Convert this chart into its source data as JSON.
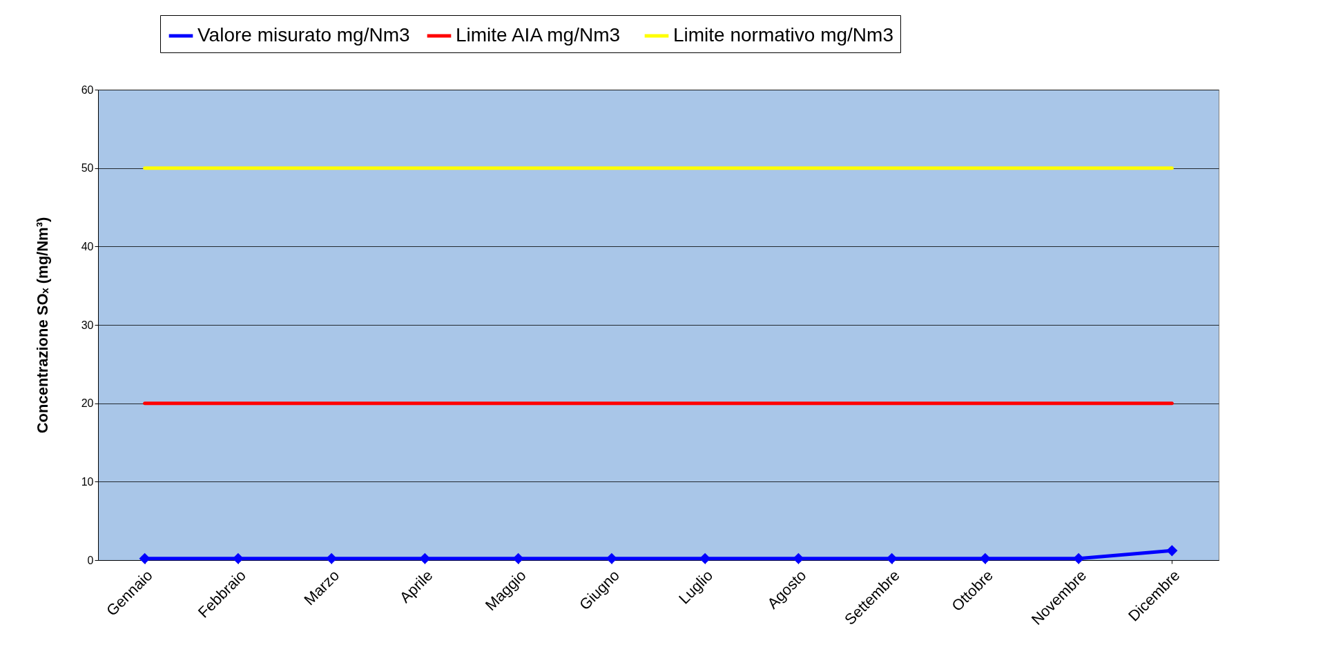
{
  "chart_data": {
    "type": "line",
    "ylabel": "Concentrazione SOₓ (mg/Nm³)",
    "categories": [
      "Gennaio",
      "Febbraio",
      "Marzo",
      "Aprile",
      "Maggio",
      "Giugno",
      "Luglio",
      "Agosto",
      "Settembre",
      "Ottobre",
      "Novembre",
      "Dicembre"
    ],
    "series": [
      {
        "name": "Valore misurato mg/Nm3",
        "color": "#0000ff",
        "marker": "diamond",
        "values": [
          0.2,
          0.2,
          0.2,
          0.2,
          0.2,
          0.2,
          0.2,
          0.2,
          0.2,
          0.2,
          0.2,
          1.2
        ]
      },
      {
        "name": "Limite AIA  mg/Nm3",
        "color": "#ff0000",
        "values": [
          20,
          20,
          20,
          20,
          20,
          20,
          20,
          20,
          20,
          20,
          20,
          20
        ]
      },
      {
        "name": "Limite normativo mg/Nm3",
        "color": "#ffff00",
        "values": [
          50,
          50,
          50,
          50,
          50,
          50,
          50,
          50,
          50,
          50,
          50,
          50
        ]
      }
    ],
    "ylim": [
      0,
      60
    ],
    "yticks": [
      0,
      10,
      20,
      30,
      40,
      50,
      60
    ],
    "grid": "y",
    "legend": "top"
  }
}
